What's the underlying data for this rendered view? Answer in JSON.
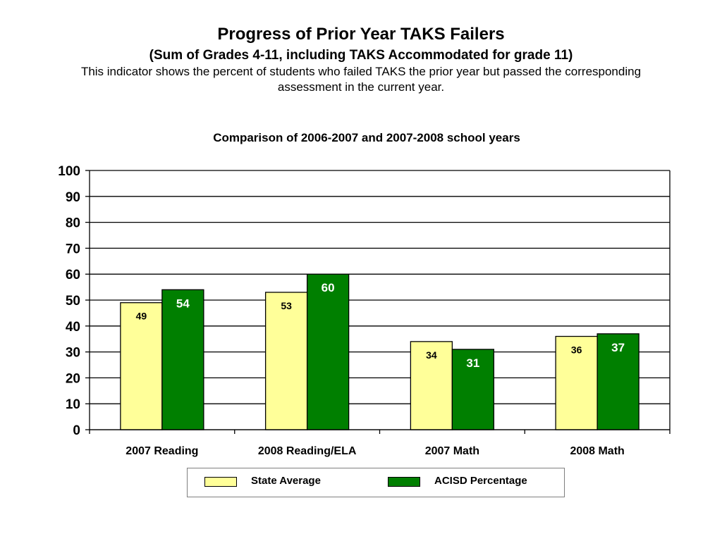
{
  "header": {
    "title": "Progress of Prior Year TAKS Failers",
    "subtitle": "(Sum of Grades 4-11, including TAKS Accommodated for grade 11)",
    "description": "This indicator shows the percent of students who failed TAKS the prior year but passed the corresponding assessment in the current year."
  },
  "chart_data": {
    "type": "bar",
    "title": "Comparison of 2006-2007 and 2007-2008 school years",
    "xlabel": "",
    "ylabel": "",
    "ylim": [
      0,
      100
    ],
    "yticks": [
      0,
      10,
      20,
      30,
      40,
      50,
      60,
      70,
      80,
      90,
      100
    ],
    "grid": true,
    "legend_position": "bottom",
    "categories": [
      "2007 Reading",
      "2008 Reading/ELA",
      "2007 Math",
      "2008 Math"
    ],
    "series": [
      {
        "name": "State Average",
        "values": [
          49,
          53,
          34,
          36
        ],
        "color": "#ffff99"
      },
      {
        "name": "ACISD Percentage",
        "values": [
          54,
          60,
          31,
          37
        ],
        "color": "#007f00"
      }
    ]
  }
}
